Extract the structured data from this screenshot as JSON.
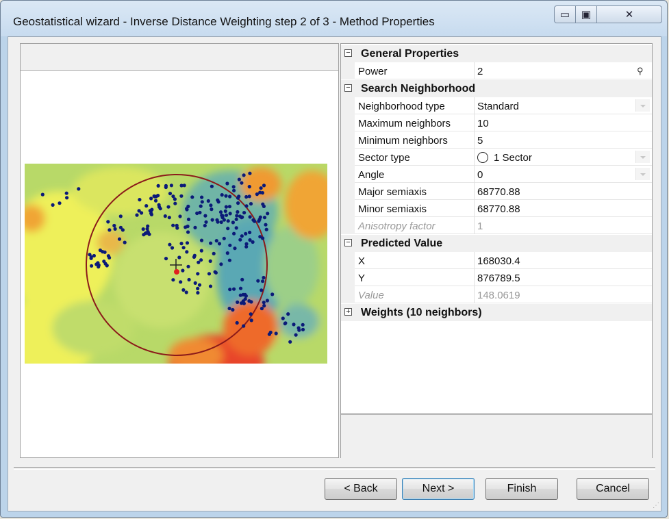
{
  "window": {
    "title": "Geostatistical wizard - Inverse Distance Weighting step 2 of 3 - Method Properties",
    "controls": {
      "minimize": "▭",
      "maximize": "▣",
      "close": "✕"
    }
  },
  "grid": {
    "categories": {
      "general": {
        "toggle": "−",
        "label": "General Properties"
      },
      "search": {
        "toggle": "−",
        "label": "Search Neighborhood"
      },
      "predicted": {
        "toggle": "−",
        "label": "Predicted Value"
      },
      "weights": {
        "toggle": "+",
        "label": "Weights (10 neighbors)"
      }
    },
    "props": {
      "power": {
        "name": "Power",
        "value": "2"
      },
      "neighborhood_type": {
        "name": "Neighborhood type",
        "value": "Standard"
      },
      "max_neighbors": {
        "name": "Maximum neighbors",
        "value": "10"
      },
      "min_neighbors": {
        "name": "Minimum neighbors",
        "value": "5"
      },
      "sector_type": {
        "name": "Sector type",
        "value": "1 Sector"
      },
      "angle": {
        "name": "Angle",
        "value": "0"
      },
      "major_semiaxis": {
        "name": "Major semiaxis",
        "value": "68770.88"
      },
      "minor_semiaxis": {
        "name": "Minor semiaxis",
        "value": "68770.88"
      },
      "anisotropy_factor": {
        "name": "Anisotropy factor",
        "value": "1"
      },
      "x": {
        "name": "X",
        "value": "168030.4"
      },
      "y": {
        "name": "Y",
        "value": "876789.5"
      },
      "value": {
        "name": "Value",
        "value": "148.0619"
      }
    }
  },
  "buttons": {
    "back": "< Back",
    "next": "Next >",
    "finish": "Finish",
    "cancel": "Cancel"
  },
  "map": {
    "colors": {
      "low": "#f2ef57",
      "mid": "#a9d46a",
      "high_blue": "#4ea0b8",
      "orange": "#f0a030",
      "red": "#e8452a",
      "point": "#0b1a78"
    }
  }
}
